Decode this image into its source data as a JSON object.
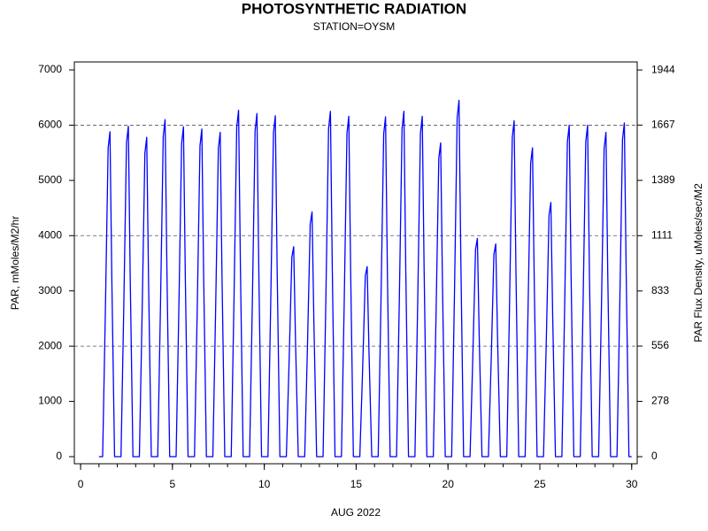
{
  "chart_data": {
    "type": "line",
    "title": "PHOTOSYNTHETIC RADIATION",
    "subtitle": "STATION=OYSM",
    "x_label": "AUG 2022",
    "y_label": "PAR, mMoles/M2/hr",
    "y2_label": "PAR Flux Density, uMoles/sec/M2",
    "xlim": [
      -0.34,
      30.3
    ],
    "xticks": [
      0,
      5,
      10,
      15,
      20,
      25,
      30
    ],
    "ylim": [
      -128,
      7144
    ],
    "yticks": [
      0,
      1000,
      2000,
      3000,
      4000,
      5000,
      6000,
      7000
    ],
    "y2lim": [
      -35.6,
      1984.4
    ],
    "y2ticks": [
      0,
      278,
      556,
      833,
      1111,
      1389,
      1667,
      1944
    ],
    "grid_lines": [
      2000,
      4000,
      6000
    ],
    "x": [
      1.0,
      1.2,
      1.35,
      1.5,
      1.6,
      1.7,
      1.85,
      2.2,
      2.35,
      2.5,
      2.6,
      2.7,
      2.85,
      3.2,
      3.35,
      3.5,
      3.6,
      3.7,
      3.85,
      4.2,
      4.35,
      4.5,
      4.6,
      4.7,
      4.85,
      5.2,
      5.35,
      5.5,
      5.6,
      5.7,
      5.85,
      6.2,
      6.35,
      6.5,
      6.6,
      6.7,
      6.85,
      7.2,
      7.35,
      7.5,
      7.6,
      7.7,
      7.85,
      8.2,
      8.35,
      8.5,
      8.6,
      8.7,
      8.85,
      9.2,
      9.35,
      9.5,
      9.6,
      9.7,
      9.85,
      10.2,
      10.35,
      10.5,
      10.6,
      10.7,
      10.85,
      11.2,
      11.35,
      11.5,
      11.6,
      11.7,
      11.85,
      12.2,
      12.35,
      12.5,
      12.6,
      12.7,
      12.85,
      13.2,
      13.35,
      13.5,
      13.6,
      13.7,
      13.85,
      14.2,
      14.35,
      14.5,
      14.6,
      14.7,
      14.85,
      15.2,
      15.35,
      15.5,
      15.6,
      15.7,
      15.85,
      16.2,
      16.35,
      16.5,
      16.6,
      16.7,
      16.85,
      17.2,
      17.35,
      17.5,
      17.6,
      17.7,
      17.85,
      18.2,
      18.35,
      18.5,
      18.6,
      18.7,
      18.85,
      19.2,
      19.35,
      19.5,
      19.6,
      19.7,
      19.85,
      20.2,
      20.35,
      20.5,
      20.6,
      20.7,
      20.85,
      21.2,
      21.35,
      21.5,
      21.6,
      21.7,
      21.85,
      22.2,
      22.35,
      22.5,
      22.6,
      22.7,
      22.85,
      23.2,
      23.35,
      23.5,
      23.6,
      23.7,
      23.85,
      24.2,
      24.35,
      24.5,
      24.6,
      24.7,
      24.85,
      25.2,
      25.35,
      25.5,
      25.6,
      25.7,
      25.85,
      26.2,
      26.35,
      26.5,
      26.6,
      26.7,
      26.85,
      27.2,
      27.35,
      27.5,
      27.6,
      27.7,
      27.85,
      28.2,
      28.35,
      28.5,
      28.6,
      28.7,
      28.85,
      29.2,
      29.35,
      29.5,
      29.6,
      29.7,
      29.85,
      30.0
    ],
    "series": [
      {
        "name": "PAR",
        "color": "#0000ff",
        "values": [
          0,
          0,
          2650,
          5590,
          5880,
          3230,
          0,
          0,
          2690,
          5680,
          5980,
          3290,
          0,
          0,
          2600,
          5490,
          5780,
          3180,
          0,
          0,
          2750,
          5800,
          6100,
          3360,
          0,
          0,
          2690,
          5670,
          5970,
          3280,
          0,
          0,
          2670,
          5630,
          5930,
          3260,
          0,
          0,
          2640,
          5580,
          5870,
          3230,
          0,
          0,
          2820,
          5960,
          6270,
          3450,
          0,
          0,
          2790,
          5900,
          6210,
          3420,
          0,
          0,
          2780,
          5860,
          6170,
          3390,
          0,
          0,
          1710,
          3610,
          3800,
          2090,
          0,
          0,
          1990,
          4210,
          4430,
          2440,
          0,
          0,
          2810,
          5940,
          6250,
          3440,
          0,
          0,
          2770,
          5850,
          6160,
          3390,
          0,
          0,
          1550,
          3270,
          3440,
          1890,
          0,
          0,
          2770,
          5840,
          6150,
          3380,
          0,
          0,
          2810,
          5940,
          6250,
          3440,
          0,
          0,
          2770,
          5850,
          6160,
          3390,
          0,
          0,
          2560,
          5400,
          5680,
          3120,
          0,
          0,
          2900,
          6130,
          6450,
          3550,
          0,
          0,
          1780,
          3750,
          3950,
          2170,
          0,
          0,
          1730,
          3660,
          3850,
          2120,
          0,
          0,
          2740,
          5780,
          6080,
          3340,
          0,
          0,
          2520,
          5310,
          5590,
          3070,
          0,
          0,
          2070,
          4370,
          4600,
          2530,
          0,
          0,
          2700,
          5700,
          6000,
          3300,
          0,
          0,
          2700,
          5700,
          6000,
          3300,
          0,
          0,
          2640,
          5580,
          5870,
          3230,
          0,
          0,
          2720,
          5740,
          6040,
          3320,
          0,
          0
        ]
      }
    ]
  }
}
